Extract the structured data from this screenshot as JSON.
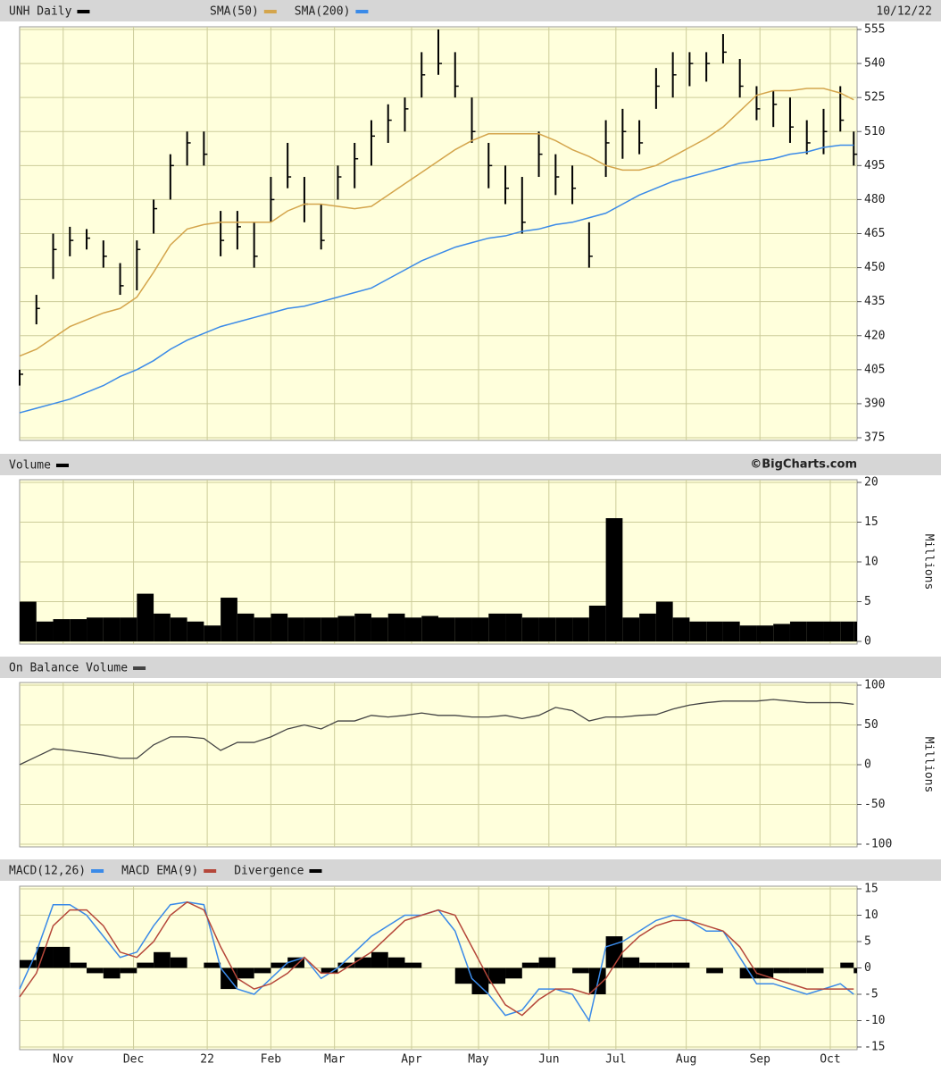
{
  "chart_data": [
    {
      "type": "ohlc",
      "title": "UNH Daily",
      "date": "10/12/22",
      "color": "#000000",
      "grid": true,
      "xlim": [
        0,
        250
      ],
      "xticks": [
        13,
        34,
        56,
        75,
        94,
        117,
        137,
        158,
        178,
        199,
        221,
        242
      ],
      "ylim": [
        375,
        555
      ],
      "yticks": [
        375,
        390,
        405,
        420,
        435,
        450,
        465,
        480,
        495,
        510,
        525,
        540,
        555
      ],
      "x": [
        0,
        5,
        10,
        15,
        20,
        25,
        30,
        35,
        40,
        45,
        50,
        55,
        60,
        65,
        70,
        75,
        80,
        85,
        90,
        95,
        100,
        105,
        110,
        115,
        120,
        125,
        130,
        135,
        140,
        145,
        150,
        155,
        160,
        165,
        170,
        175,
        180,
        185,
        190,
        195,
        200,
        205,
        210,
        215,
        220,
        225,
        230,
        235,
        240,
        245,
        249
      ],
      "high": [
        405,
        438,
        465,
        468,
        467,
        462,
        452,
        462,
        480,
        500,
        510,
        510,
        475,
        475,
        470,
        490,
        505,
        490,
        478,
        495,
        505,
        515,
        522,
        525,
        545,
        555,
        545,
        525,
        505,
        495,
        490,
        510,
        500,
        495,
        470,
        515,
        520,
        515,
        538,
        545,
        545,
        545,
        553,
        542,
        530,
        528,
        525,
        515,
        520,
        530,
        510
      ],
      "low": [
        398,
        425,
        445,
        455,
        458,
        450,
        438,
        440,
        465,
        480,
        495,
        495,
        455,
        458,
        450,
        470,
        485,
        470,
        458,
        480,
        485,
        495,
        505,
        510,
        525,
        535,
        525,
        505,
        485,
        478,
        465,
        490,
        482,
        478,
        450,
        490,
        498,
        500,
        520,
        525,
        530,
        532,
        540,
        525,
        515,
        512,
        505,
        500,
        500,
        510,
        495
      ],
      "close": [
        403,
        432,
        458,
        462,
        463,
        455,
        442,
        458,
        476,
        495,
        505,
        500,
        462,
        468,
        455,
        480,
        490,
        478,
        462,
        490,
        498,
        508,
        515,
        520,
        535,
        540,
        530,
        510,
        495,
        485,
        470,
        500,
        490,
        485,
        455,
        505,
        510,
        505,
        530,
        535,
        540,
        540,
        545,
        530,
        520,
        522,
        512,
        505,
        510,
        515,
        500
      ],
      "series": [
        {
          "name": "SMA(50)",
          "color": "#d4a54c",
          "values": [
            411,
            414,
            419,
            424,
            427,
            430,
            432,
            437,
            448,
            460,
            467,
            469,
            470,
            470,
            470,
            470,
            475,
            478,
            478,
            477,
            476,
            477,
            482,
            487,
            492,
            497,
            502,
            506,
            509,
            509,
            509,
            509,
            506,
            502,
            499,
            495,
            493,
            493,
            495,
            499,
            503,
            507,
            512,
            519,
            526,
            528,
            528,
            529,
            529,
            527,
            524
          ]
        },
        {
          "name": "SMA(200)",
          "color": "#3a8ae8",
          "values": [
            386,
            388,
            390,
            392,
            395,
            398,
            402,
            405,
            409,
            414,
            418,
            421,
            424,
            426,
            428,
            430,
            432,
            433,
            435,
            437,
            439,
            441,
            445,
            449,
            453,
            456,
            459,
            461,
            463,
            464,
            466,
            467,
            469,
            470,
            472,
            474,
            478,
            482,
            485,
            488,
            490,
            492,
            494,
            496,
            497,
            498,
            500,
            501,
            503,
            504,
            504
          ]
        }
      ]
    },
    {
      "type": "bar",
      "title": "Volume",
      "credit": "©BigCharts.com",
      "ylabel": "Millions",
      "color": "#000000",
      "grid": true,
      "xlim": [
        0,
        250
      ],
      "xticks": [
        13,
        34,
        56,
        75,
        94,
        117,
        137,
        158,
        178,
        199,
        221,
        242
      ],
      "ylim": [
        0,
        20
      ],
      "yticks": [
        0,
        5,
        10,
        15,
        20
      ],
      "x": [
        0,
        5,
        10,
        15,
        20,
        25,
        30,
        35,
        40,
        45,
        50,
        55,
        60,
        65,
        70,
        75,
        80,
        85,
        90,
        95,
        100,
        105,
        110,
        115,
        120,
        125,
        130,
        135,
        140,
        145,
        150,
        155,
        160,
        165,
        170,
        175,
        180,
        185,
        190,
        195,
        200,
        205,
        210,
        215,
        220,
        225,
        230,
        235,
        240,
        245,
        249
      ],
      "values": [
        5,
        2.5,
        2.8,
        2.8,
        3,
        3,
        3,
        6,
        3.5,
        3,
        2.5,
        2,
        5.5,
        3.5,
        3,
        3.5,
        3,
        3,
        3,
        3.2,
        3.5,
        3,
        3.5,
        3,
        3.2,
        3,
        3,
        3,
        3.5,
        3.5,
        3,
        3,
        3,
        3,
        4.5,
        15.5,
        3,
        3.5,
        5,
        3,
        2.5,
        2.5,
        2.5,
        2,
        2,
        2.2,
        2.5,
        2.5,
        2.5,
        2.5,
        2.5
      ]
    },
    {
      "type": "line",
      "title": "On Balance Volume",
      "ylabel": "Millions",
      "color": "#444444",
      "grid": true,
      "xlim": [
        0,
        250
      ],
      "xticks": [
        13,
        34,
        56,
        75,
        94,
        117,
        137,
        158,
        178,
        199,
        221,
        242
      ],
      "ylim": [
        -100,
        100
      ],
      "yticks": [
        -100,
        -50,
        0,
        50,
        100
      ],
      "x": [
        0,
        5,
        10,
        15,
        20,
        25,
        30,
        35,
        40,
        45,
        50,
        55,
        60,
        65,
        70,
        75,
        80,
        85,
        90,
        95,
        100,
        105,
        110,
        115,
        120,
        125,
        130,
        135,
        140,
        145,
        150,
        155,
        160,
        165,
        170,
        175,
        180,
        185,
        190,
        195,
        200,
        205,
        210,
        215,
        220,
        225,
        230,
        235,
        240,
        245,
        249
      ],
      "values": [
        0,
        10,
        20,
        18,
        15,
        12,
        8,
        8,
        25,
        35,
        35,
        33,
        18,
        28,
        28,
        35,
        45,
        50,
        45,
        55,
        55,
        62,
        60,
        62,
        65,
        62,
        62,
        60,
        60,
        62,
        58,
        62,
        72,
        68,
        55,
        60,
        60,
        62,
        63,
        70,
        75,
        78,
        80,
        80,
        80,
        82,
        80,
        78,
        78,
        78,
        76
      ]
    },
    {
      "type": "macd",
      "grid": true,
      "xlim": [
        0,
        250
      ],
      "xticks": [
        {
          "value": 13,
          "label": "Nov"
        },
        {
          "value": 34,
          "label": "Dec"
        },
        {
          "value": 56,
          "label": "22"
        },
        {
          "value": 75,
          "label": "Feb"
        },
        {
          "value": 94,
          "label": "Mar"
        },
        {
          "value": 117,
          "label": "Apr"
        },
        {
          "value": 137,
          "label": "May"
        },
        {
          "value": 158,
          "label": "Jun"
        },
        {
          "value": 178,
          "label": "Jul"
        },
        {
          "value": 199,
          "label": "Aug"
        },
        {
          "value": 221,
          "label": "Sep"
        },
        {
          "value": 242,
          "label": "Oct"
        }
      ],
      "ylim": [
        -15,
        15
      ],
      "yticks": [
        -15,
        -10,
        -5,
        0,
        5,
        10,
        15
      ],
      "x": [
        0,
        5,
        10,
        15,
        20,
        25,
        30,
        35,
        40,
        45,
        50,
        55,
        60,
        65,
        70,
        75,
        80,
        85,
        90,
        95,
        100,
        105,
        110,
        115,
        120,
        125,
        130,
        135,
        140,
        145,
        150,
        155,
        160,
        165,
        170,
        175,
        180,
        185,
        190,
        195,
        200,
        205,
        210,
        215,
        220,
        225,
        230,
        235,
        240,
        245,
        249
      ],
      "series": [
        {
          "name": "MACD(12,26)",
          "color": "#3a8ae8",
          "type": "line",
          "values": [
            -4,
            3,
            12,
            12,
            10,
            6,
            2,
            3,
            8,
            12,
            12.5,
            12,
            0,
            -4,
            -5,
            -2,
            1,
            2,
            -2,
            0,
            3,
            6,
            8,
            10,
            10,
            11,
            7,
            -2,
            -5,
            -9,
            -8,
            -4,
            -4,
            -5,
            -10,
            4,
            5,
            7,
            9,
            10,
            9,
            7,
            7,
            2,
            -3,
            -3,
            -4,
            -5,
            -4,
            -3,
            -5
          ]
        },
        {
          "name": "MACD EMA(9)",
          "color": "#b5473a",
          "type": "line",
          "values": [
            -5.5,
            -1,
            8,
            11,
            11,
            8,
            3,
            2,
            5,
            10,
            12.5,
            11,
            4,
            -2,
            -4,
            -3,
            -1,
            2,
            -1,
            -1,
            1,
            3,
            6,
            9,
            10,
            11,
            10,
            4,
            -2,
            -7,
            -9,
            -6,
            -4,
            -4,
            -5,
            -2,
            3,
            6,
            8,
            9,
            9,
            8,
            7,
            4,
            -1,
            -2,
            -3,
            -4,
            -4,
            -4,
            -4
          ]
        },
        {
          "name": "Divergence",
          "color": "#000000",
          "type": "bar",
          "values": [
            1.5,
            4,
            4,
            1,
            -1,
            -2,
            -1,
            1,
            3,
            2,
            0,
            1,
            -4,
            -2,
            -1,
            1,
            2,
            0,
            -1,
            1,
            2,
            3,
            2,
            1,
            0,
            0,
            -3,
            -5,
            -3,
            -2,
            1,
            2,
            0,
            -1,
            -5,
            6,
            2,
            1,
            1,
            1,
            0,
            -1,
            0,
            -2,
            -2,
            -1,
            -1,
            -1,
            0,
            1,
            -1
          ]
        }
      ]
    }
  ]
}
